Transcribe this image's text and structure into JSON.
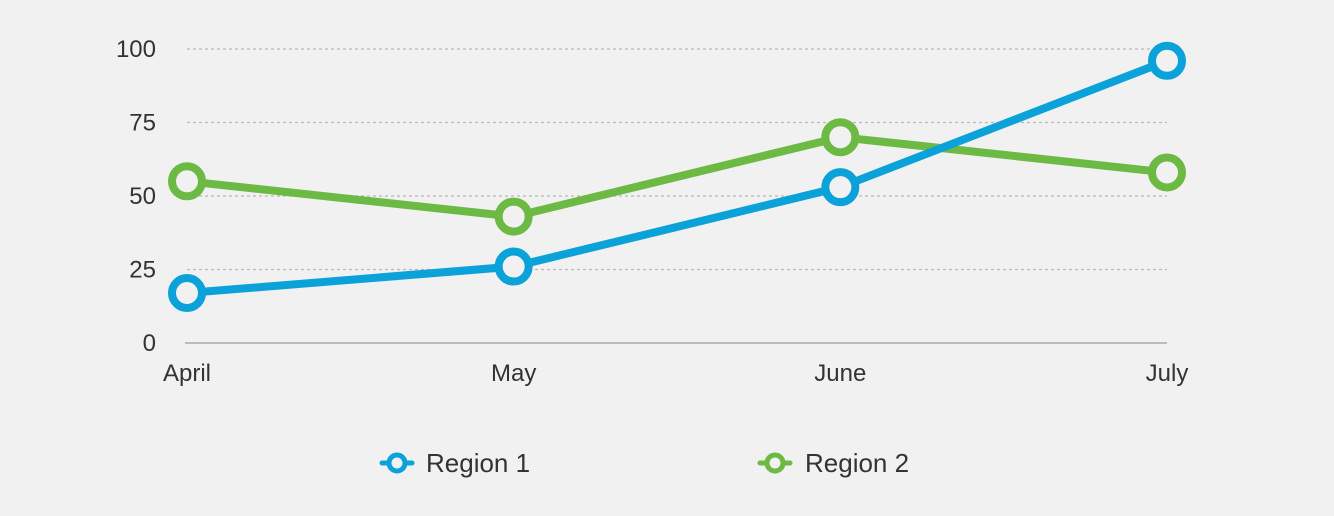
{
  "chart_data": {
    "type": "line",
    "title": "",
    "xlabel": "",
    "ylabel": "",
    "categories": [
      "April",
      "May",
      "June",
      "July"
    ],
    "series": [
      {
        "name": "Region 1",
        "color": "#0aa2d8",
        "values": [
          17,
          26,
          53,
          96
        ]
      },
      {
        "name": "Region 2",
        "color": "#6cb944",
        "values": [
          55,
          43,
          70,
          58
        ]
      }
    ],
    "ylim": [
      0,
      100
    ],
    "yticks": [
      0,
      25,
      50,
      75,
      100
    ],
    "grid": true,
    "legend_position": "bottom"
  }
}
